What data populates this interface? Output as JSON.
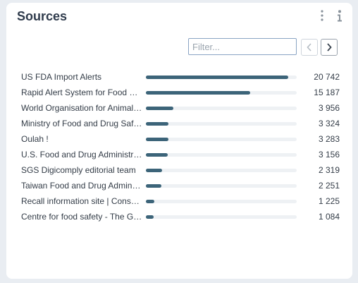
{
  "card": {
    "title": "Sources"
  },
  "toolbar": {
    "menu_icon": "kebab-vertical-icon",
    "info_icon": "info-icon"
  },
  "filter": {
    "placeholder": "Filter...",
    "value": ""
  },
  "pagination": {
    "prev_icon": "chevron-left-icon",
    "next_icon": "chevron-right-icon"
  },
  "colors": {
    "bar_fill": "#3c6479",
    "bar_track": "#eef1f4",
    "title": "#2f3b4c"
  },
  "sources": [
    {
      "label": "US FDA Import Alerts",
      "count": "20 742",
      "value": 20742
    },
    {
      "label": "Rapid Alert System for Food and Feed (RASFF)",
      "count": "15 187",
      "value": 15187
    },
    {
      "label": "World Organisation for Animal Health (WOAH)",
      "count": "3 956",
      "value": 3956
    },
    {
      "label": "Ministry of Food and Drug Safety (MFDS)",
      "count": "3 324",
      "value": 3324
    },
    {
      "label": "Oulah !",
      "count": "3 283",
      "value": 3283
    },
    {
      "label": "U.S. Food and Drug Administration (FDA)",
      "count": "3 156",
      "value": 3156
    },
    {
      "label": "SGS Digicomply editorial team",
      "count": "2 319",
      "value": 2319
    },
    {
      "label": "Taiwan Food and Drug Administration (TFDA)",
      "count": "2 251",
      "value": 2251
    },
    {
      "label": "Recall information site | Consumer Affairs Agency",
      "count": "1 225",
      "value": 1225
    },
    {
      "label": "Centre for food safety - The Government of Hong Kong",
      "count": "1 084",
      "value": 1084
    }
  ]
}
